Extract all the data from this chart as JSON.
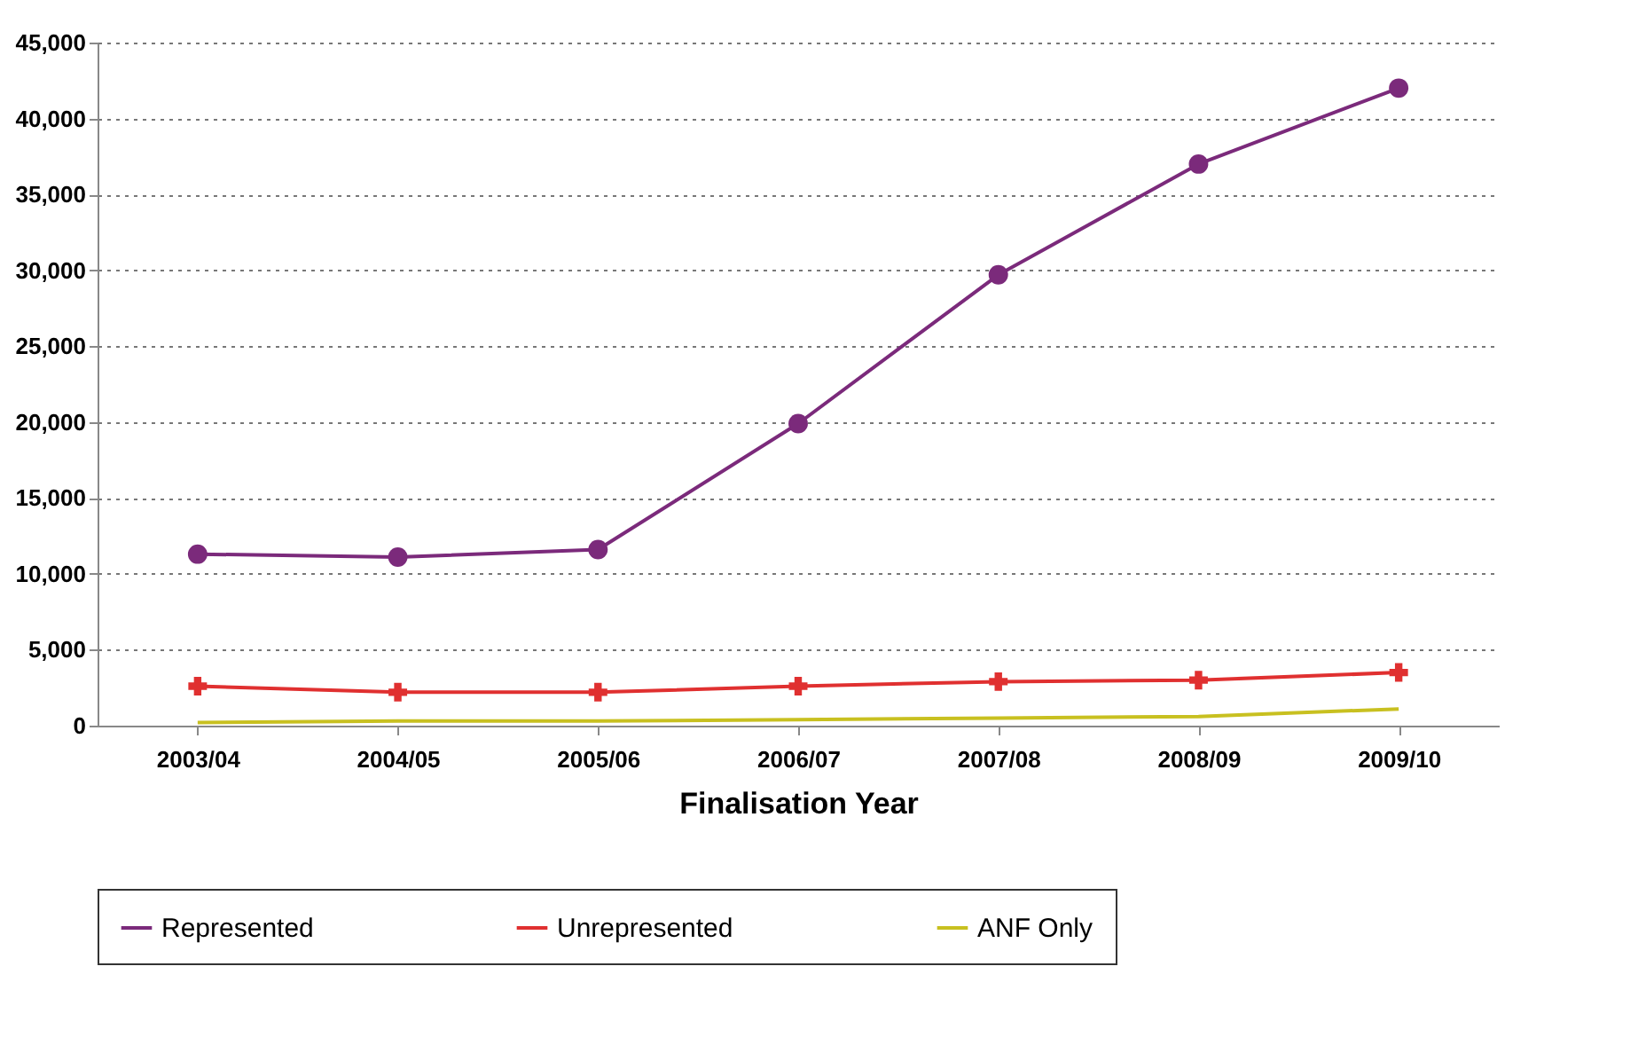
{
  "chart_data": {
    "type": "line",
    "xlabel": "Finalisation Year",
    "categories": [
      "2003/04",
      "2004/05",
      "2005/06",
      "2006/07",
      "2007/08",
      "2008/09",
      "2009/10"
    ],
    "series": [
      {
        "name": "Represented",
        "color": "#7b2a7b",
        "marker": "circle",
        "values": [
          11300,
          11100,
          11600,
          19900,
          29700,
          37000,
          42000
        ]
      },
      {
        "name": "Unrepresented",
        "color": "#e03030",
        "marker": "cross",
        "values": [
          2600,
          2200,
          2200,
          2600,
          2900,
          3000,
          3500
        ]
      },
      {
        "name": "ANF Only",
        "color": "#c8c020",
        "marker": "none",
        "values": [
          200,
          300,
          300,
          400,
          500,
          600,
          1100
        ]
      }
    ],
    "ylim": [
      0,
      45000
    ],
    "yticks": [
      0,
      {
        "value": 5000,
        "label": "5,000"
      },
      {
        "value": 10000,
        "label": "10,000"
      },
      {
        "value": 15000,
        "label": "15,000"
      },
      {
        "value": 20000,
        "label": "20,000"
      },
      {
        "value": 25000,
        "label": "25,000"
      },
      {
        "value": 30000,
        "label": "30,000"
      },
      {
        "value": 35000,
        "label": "35,000"
      },
      {
        "value": 40000,
        "label": "40,000"
      },
      {
        "value": 45000,
        "label": "45,000"
      }
    ],
    "grid": "y",
    "legend": "bottom",
    "line_style": "solid"
  }
}
